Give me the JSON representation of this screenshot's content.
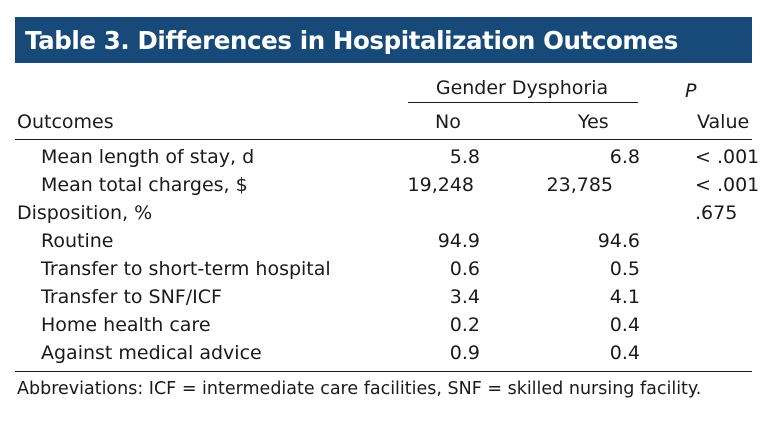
{
  "title": "Table 3. Differences in Hospitalization Outcomes",
  "header": {
    "group_label": "Gender Dysphoria",
    "outcomes_label": "Outcomes",
    "no_label": "No",
    "yes_label": "Yes",
    "p_label": "P",
    "value_label": "Value"
  },
  "rows": [
    {
      "label": "Mean length of stay, d",
      "indent": true,
      "no": "5.8",
      "yes": "6.8",
      "p": "< .001"
    },
    {
      "label": "Mean total charges, $",
      "indent": true,
      "no": "19,248",
      "yes": "23,785",
      "p": "< .001"
    },
    {
      "label": "Disposition, %",
      "indent": false,
      "no": "",
      "yes": "",
      "p": ".675"
    },
    {
      "label": "Routine",
      "indent": true,
      "no": "94.9",
      "yes": "94.6",
      "p": ""
    },
    {
      "label": "Transfer to short-term hospital",
      "indent": true,
      "no": "0.6",
      "yes": "0.5",
      "p": ""
    },
    {
      "label": "Transfer to SNF/ICF",
      "indent": true,
      "no": "3.4",
      "yes": "4.1",
      "p": ""
    },
    {
      "label": "Home health care",
      "indent": true,
      "no": "0.2",
      "yes": "0.4",
      "p": ""
    },
    {
      "label": "Against medical advice",
      "indent": true,
      "no": "0.9",
      "yes": "0.4",
      "p": ""
    }
  ],
  "footnote": "Abbreviations: ICF = intermediate care facilities, SNF = skilled nursing facility."
}
